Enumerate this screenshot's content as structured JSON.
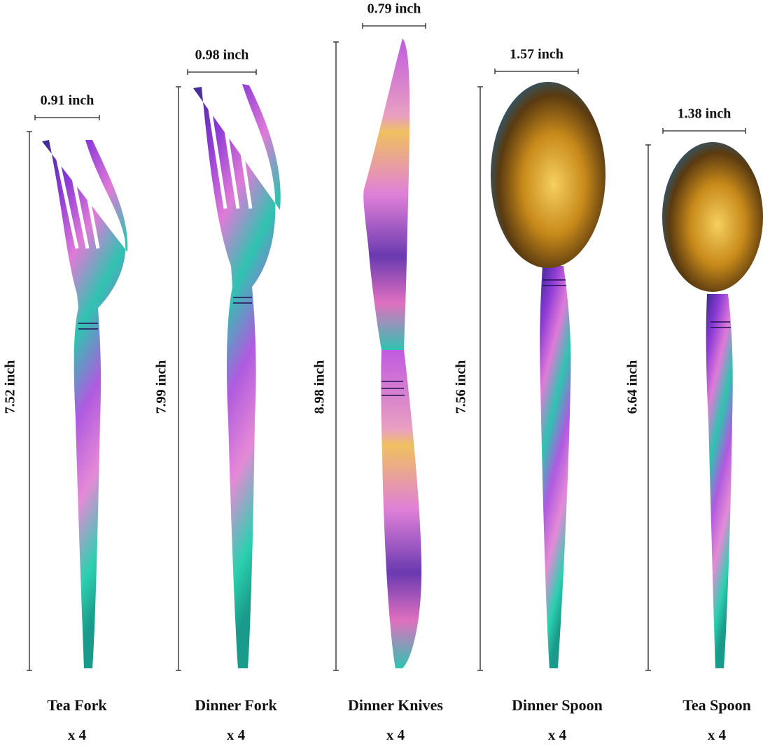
{
  "items": [
    {
      "name": "Tea Fork",
      "quantity": "x 4",
      "width": "0.91 inch",
      "length": "7.52 inch"
    },
    {
      "name": "Dinner Fork",
      "quantity": "x 4",
      "width": "0.98 inch",
      "length": "7.99 inch"
    },
    {
      "name": "Dinner Knives",
      "quantity": "x 4",
      "width": "0.79 inch",
      "length": "8.98 inch"
    },
    {
      "name": "Dinner Spoon",
      "quantity": "x 4",
      "width": "1.57 inch",
      "length": "7.56 inch"
    },
    {
      "name": "Tea Spoon",
      "quantity": "x 4",
      "width": "1.38 inch",
      "length": "6.64  inch"
    }
  ]
}
